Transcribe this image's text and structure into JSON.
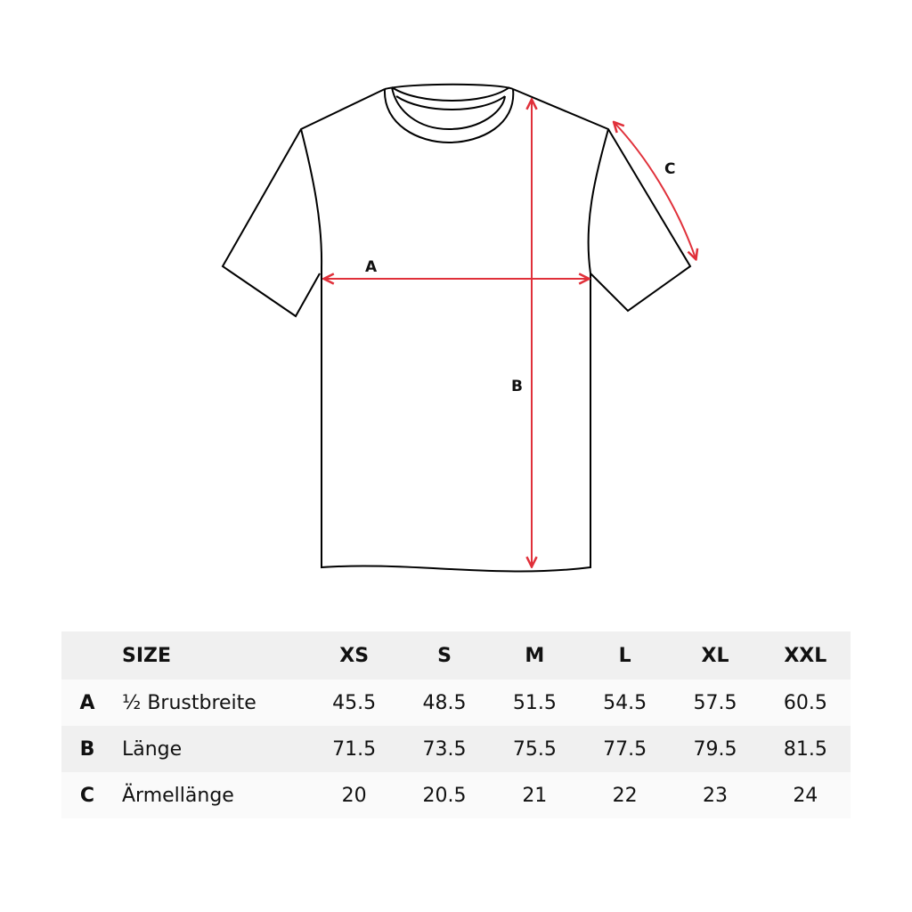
{
  "diagram": {
    "labels": {
      "a": "A",
      "b": "B",
      "c": "C"
    },
    "colors": {
      "outline": "#000000",
      "measure": "#e0303a"
    }
  },
  "table": {
    "header": {
      "size_label": "SIZE",
      "sizes": [
        "XS",
        "S",
        "M",
        "L",
        "XL",
        "XXL"
      ]
    },
    "rows": [
      {
        "key": "A",
        "name": "½ Brustbreite",
        "values": [
          "45.5",
          "48.5",
          "51.5",
          "54.5",
          "57.5",
          "60.5"
        ]
      },
      {
        "key": "B",
        "name": "Länge",
        "values": [
          "71.5",
          "73.5",
          "75.5",
          "77.5",
          "79.5",
          "81.5"
        ]
      },
      {
        "key": "C",
        "name": "Ärmellänge",
        "values": [
          "20",
          "20.5",
          "21",
          "22",
          "23",
          "24"
        ]
      }
    ]
  }
}
